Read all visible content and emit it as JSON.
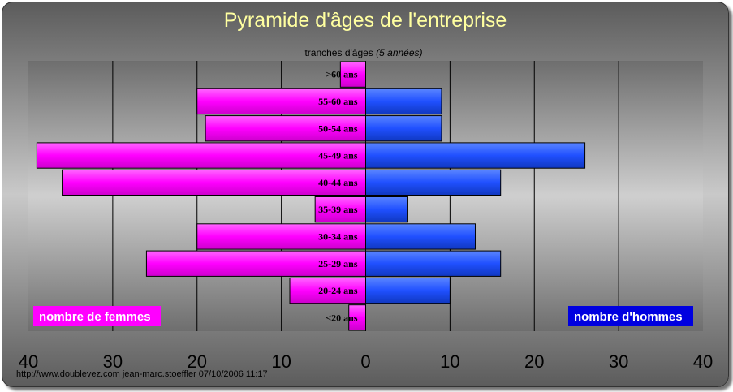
{
  "title": "Pyramide d'âges de l'entreprise",
  "footer": "http://www.doublevez.com jean-marc.stoeffler 07/10/2006 11:17",
  "colors": {
    "women": "#ff00ff",
    "men": "#2050ff",
    "title": "#ffffa0"
  },
  "chart_data": {
    "type": "bar",
    "orientation": "horizontal-pyramid",
    "title": "Pyramide d'âges de l'entreprise",
    "category_axis_label_prefix": "tranches d'âges",
    "category_axis_label_note": "(5 années)",
    "categories": [
      ">60 ans",
      "55-60 ans",
      "50-54 ans",
      "45-49 ans",
      "40-44 ans",
      "35-39 ans",
      "30-34 ans",
      "25-29 ans",
      "20-24 ans",
      "<20 ans"
    ],
    "series": [
      {
        "name": "nombre de femmes",
        "values": [
          3,
          20,
          19,
          39,
          36,
          6,
          20,
          26,
          9,
          2
        ]
      },
      {
        "name": "nombre d'hommes",
        "values": [
          0,
          9,
          9,
          26,
          16,
          5,
          13,
          16,
          10,
          0
        ]
      }
    ],
    "xlim": [
      -40,
      40
    ],
    "x_ticks": [
      {
        "value": -40,
        "label": "40"
      },
      {
        "value": -30,
        "label": "30"
      },
      {
        "value": -20,
        "label": "20"
      },
      {
        "value": -10,
        "label": "10"
      },
      {
        "value": 0,
        "label": "0"
      },
      {
        "value": 10,
        "label": "10"
      },
      {
        "value": 20,
        "label": "20"
      },
      {
        "value": 30,
        "label": "30"
      },
      {
        "value": 40,
        "label": "40"
      }
    ],
    "grid": true,
    "legend": [
      "bottom-left",
      "bottom-right"
    ]
  }
}
